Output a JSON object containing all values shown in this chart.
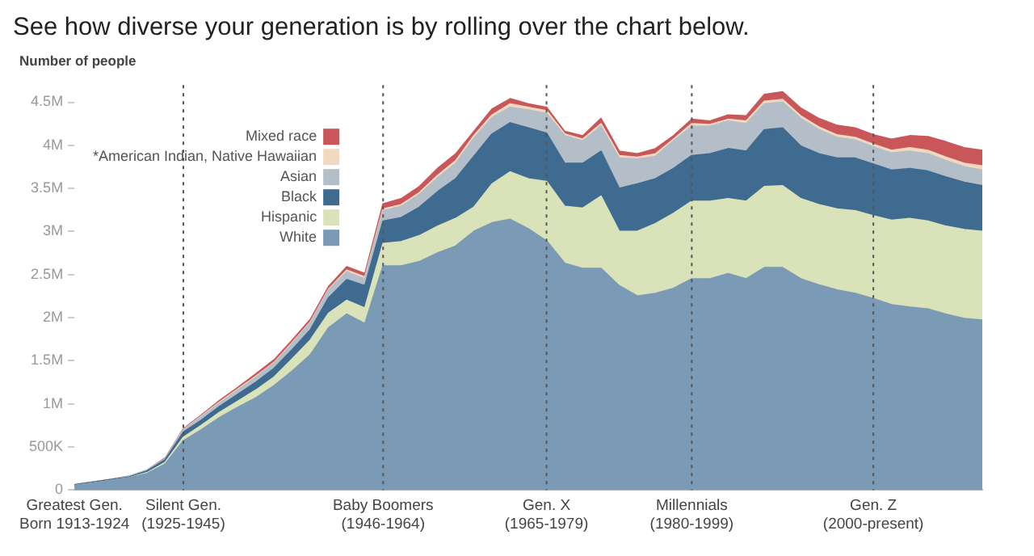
{
  "chart_data": {
    "type": "area",
    "stacked": true,
    "title": "See how diverse your generation is by rolling over the chart below.",
    "ylabel": "Number of people",
    "categories": [
      "Greatest Gen.\nBorn 1913-1924",
      null,
      null,
      null,
      null,
      null,
      "Silent Gen. (1925-1945)",
      null,
      null,
      null,
      null,
      null,
      null,
      null,
      null,
      null,
      null,
      "Baby Boomers (1946-1964)",
      null,
      null,
      null,
      null,
      null,
      null,
      null,
      null,
      "Gen. X (1965-1979)",
      null,
      null,
      null,
      null,
      null,
      null,
      null,
      "Millennials (1980-1999)",
      null,
      null,
      null,
      null,
      null,
      null,
      null,
      null,
      null,
      "Gen. Z (2000-present)",
      null,
      null,
      null,
      null,
      null,
      null
    ],
    "ylim": [
      0,
      4700000
    ],
    "yticks": [
      {
        "value": 0,
        "label": "0"
      },
      {
        "value": 500000,
        "label": "500K"
      },
      {
        "value": 1000000,
        "label": "1M"
      },
      {
        "value": 1500000,
        "label": "1.5M"
      },
      {
        "value": 2000000,
        "label": "2M"
      },
      {
        "value": 2500000,
        "label": "2.5M"
      },
      {
        "value": 3000000,
        "label": "3M"
      },
      {
        "value": 3500000,
        "label": "3.5M"
      },
      {
        "value": 4000000,
        "label": "4M"
      },
      {
        "value": 4500000,
        "label": "4.5M"
      }
    ],
    "grid": false,
    "legend": "top left",
    "ref_lines": [
      {
        "axis": "x",
        "value": "Silent Gen. (1925-1945)",
        "line_style": "dotted"
      },
      {
        "axis": "x",
        "value": "Baby Boomers (1946-1964)",
        "line_style": "dotted"
      },
      {
        "axis": "x",
        "value": "Gen. X (1965-1979)",
        "line_style": "dotted"
      },
      {
        "axis": "x",
        "value": "Millennials (1980-1999)",
        "line_style": "dotted"
      },
      {
        "axis": "x",
        "value": "Gen. Z (2000-present)",
        "line_style": "dotted"
      }
    ],
    "series": [
      {
        "name": "White",
        "color": "#7a9ab5",
        "values": [
          50000,
          80000,
          110000,
          140000,
          190000,
          300000,
          570000,
          700000,
          840000,
          960000,
          1070000,
          1210000,
          1380000,
          1570000,
          1880000,
          2040000,
          1930000,
          2600000,
          2600000,
          2650000,
          2750000,
          2830000,
          3000000,
          3100000,
          3140000,
          3030000,
          2890000,
          2630000,
          2570000,
          2570000,
          2370000,
          2250000,
          2280000,
          2340000,
          2450000,
          2450000,
          2510000,
          2450000,
          2580000,
          2580000,
          2450000,
          2380000,
          2320000,
          2280000,
          2220000,
          2150000,
          2120000,
          2100000,
          2040000,
          1990000,
          1970000
        ]
      },
      {
        "name": "Hispanic",
        "color": "#d9e2b8",
        "values": [
          0,
          0,
          0,
          0,
          10000,
          20000,
          40000,
          50000,
          60000,
          70000,
          90000,
          100000,
          140000,
          170000,
          170000,
          160000,
          180000,
          260000,
          280000,
          300000,
          310000,
          320000,
          280000,
          450000,
          550000,
          580000,
          690000,
          660000,
          700000,
          840000,
          630000,
          750000,
          810000,
          870000,
          900000,
          900000,
          870000,
          900000,
          940000,
          950000,
          930000,
          930000,
          940000,
          960000,
          960000,
          980000,
          1030000,
          1020000,
          1020000,
          1030000,
          1030000
        ]
      },
      {
        "name": "Black",
        "color": "#3f6b91",
        "values": [
          10000,
          10000,
          10000,
          10000,
          20000,
          30000,
          60000,
          60000,
          70000,
          80000,
          90000,
          100000,
          110000,
          120000,
          180000,
          240000,
          260000,
          260000,
          280000,
          330000,
          400000,
          460000,
          590000,
          580000,
          570000,
          590000,
          560000,
          500000,
          520000,
          520000,
          500000,
          550000,
          520000,
          520000,
          530000,
          550000,
          580000,
          580000,
          660000,
          670000,
          610000,
          590000,
          590000,
          610000,
          600000,
          580000,
          580000,
          580000,
          570000,
          550000,
          530000
        ]
      },
      {
        "name": "Asian",
        "color": "#b3bec8",
        "values": [
          0,
          0,
          0,
          10000,
          10000,
          10000,
          30000,
          40000,
          40000,
          50000,
          60000,
          60000,
          70000,
          80000,
          90000,
          90000,
          80000,
          120000,
          130000,
          150000,
          160000,
          180000,
          210000,
          190000,
          180000,
          210000,
          230000,
          320000,
          260000,
          290000,
          350000,
          290000,
          260000,
          320000,
          340000,
          320000,
          320000,
          320000,
          300000,
          300000,
          320000,
          280000,
          240000,
          210000,
          200000,
          200000,
          200000,
          200000,
          190000,
          180000,
          180000
        ]
      },
      {
        "name": "*American Indian, Native Hawaiian",
        "color": "#f0d9c0",
        "values": [
          0,
          0,
          0,
          0,
          0,
          0,
          0,
          10000,
          10000,
          10000,
          10000,
          10000,
          10000,
          10000,
          10000,
          20000,
          20000,
          20000,
          20000,
          20000,
          30000,
          30000,
          30000,
          30000,
          40000,
          30000,
          30000,
          20000,
          20000,
          30000,
          30000,
          20000,
          30000,
          20000,
          30000,
          20000,
          20000,
          30000,
          30000,
          30000,
          30000,
          30000,
          30000,
          30000,
          30000,
          30000,
          40000,
          40000,
          40000,
          40000,
          50000
        ]
      },
      {
        "name": "Mixed race",
        "color": "#c9575a",
        "values": [
          0,
          0,
          0,
          0,
          0,
          10000,
          10000,
          10000,
          20000,
          20000,
          30000,
          30000,
          30000,
          30000,
          30000,
          40000,
          40000,
          60000,
          70000,
          70000,
          80000,
          80000,
          50000,
          70000,
          60000,
          40000,
          40000,
          30000,
          40000,
          60000,
          50000,
          40000,
          60000,
          40000,
          50000,
          40000,
          50000,
          60000,
          80000,
          90000,
          90000,
          100000,
          110000,
          110000,
          110000,
          130000,
          140000,
          160000,
          180000,
          180000,
          180000
        ]
      }
    ]
  }
}
